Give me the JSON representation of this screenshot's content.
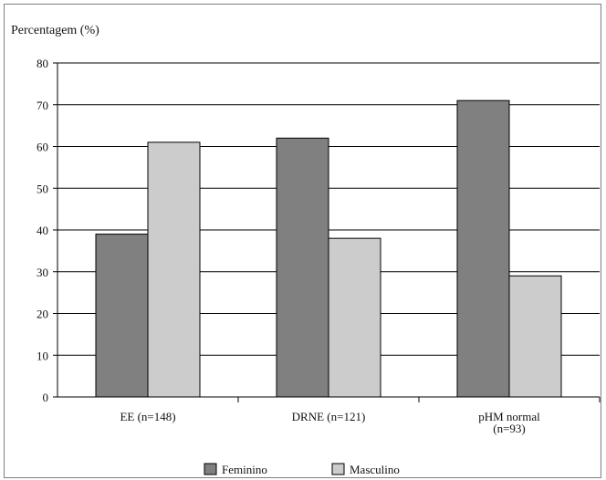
{
  "chart_data": {
    "type": "bar",
    "ylabel": "Percentagem (%)",
    "ylim": [
      0,
      80
    ],
    "ytick_step": 10,
    "grid": true,
    "legend_position": "bottom",
    "categories": [
      [
        "EE (n=148)"
      ],
      [
        "DRNE (n=121)"
      ],
      [
        "pHM normal",
        "(n=93)"
      ]
    ],
    "series": [
      {
        "name": "Feminino",
        "values": [
          39,
          62,
          71
        ],
        "color": "#808080"
      },
      {
        "name": "Masculino",
        "values": [
          61,
          38,
          29
        ],
        "color": "#cccccc"
      }
    ]
  }
}
